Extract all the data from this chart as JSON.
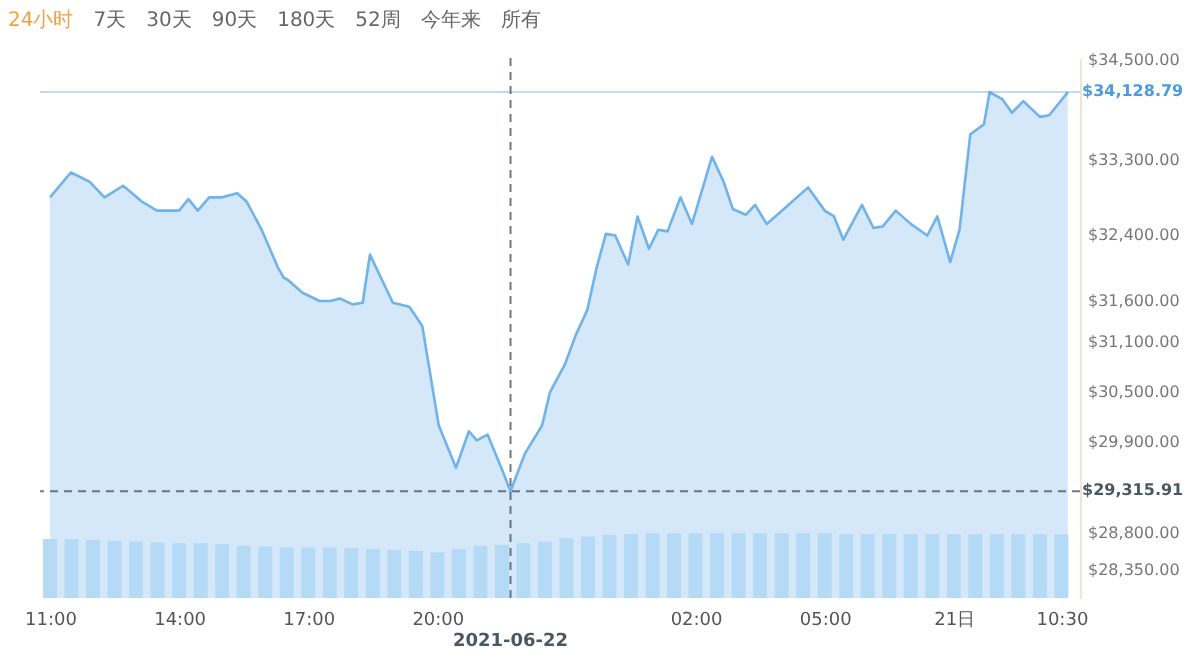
{
  "chart_data": {
    "type": "area",
    "annotations": [
      "24小时",
      "7天",
      "30天",
      "90天",
      "180天",
      "52周",
      "今年来",
      "所有"
    ],
    "x": [
      "2021-06-20T11:00",
      "2021-06-20T11:29",
      "2021-06-20T11:55",
      "2021-06-20T12:16",
      "2021-06-20T12:42",
      "2021-06-20T13:08",
      "2021-06-20T13:29",
      "2021-06-20T14:00",
      "2021-06-20T14:13",
      "2021-06-20T14:26",
      "2021-06-20T14:42",
      "2021-06-20T15:00",
      "2021-06-20T15:21",
      "2021-06-20T15:34",
      "2021-06-20T15:55",
      "2021-06-20T16:18",
      "2021-06-20T16:26",
      "2021-06-20T16:31",
      "2021-06-20T16:52",
      "2021-06-20T17:16",
      "2021-06-20T17:31",
      "2021-06-20T17:44",
      "2021-06-20T18:02",
      "2021-06-20T18:16",
      "2021-06-20T18:26",
      "2021-06-20T18:58",
      "2021-06-20T19:21",
      "2021-06-20T19:39",
      "2021-06-20T20:02",
      "2021-06-20T20:26",
      "2021-06-20T20:44",
      "2021-06-20T20:55",
      "2021-06-20T21:10",
      "2021-06-20T21:31",
      "2021-06-20T21:42",
      "2021-06-20T22:02",
      "2021-06-20T22:26",
      "2021-06-20T22:37",
      "2021-06-20T22:58",
      "2021-06-20T23:13",
      "2021-06-20T23:29",
      "2021-06-20T23:42",
      "2021-06-20T23:55",
      "2021-06-21T00:08",
      "2021-06-21T00:26",
      "2021-06-21T00:39",
      "2021-06-21T00:55",
      "2021-06-21T01:08",
      "2021-06-21T01:21",
      "2021-06-21T01:39",
      "2021-06-21T01:55",
      "2021-06-21T02:23",
      "2021-06-21T02:39",
      "2021-06-21T02:52",
      "2021-06-21T03:10",
      "2021-06-21T03:23",
      "2021-06-21T03:39",
      "2021-06-21T03:58",
      "2021-06-21T04:37",
      "2021-06-21T05:00",
      "2021-06-21T05:13",
      "2021-06-21T05:26",
      "2021-06-21T05:52",
      "2021-06-21T06:08",
      "2021-06-21T06:21",
      "2021-06-21T06:39",
      "2021-06-21T07:00",
      "2021-06-21T07:23",
      "2021-06-21T07:37",
      "2021-06-21T07:55",
      "2021-06-21T08:08",
      "2021-06-21T08:23",
      "2021-06-21T08:42",
      "2021-06-21T08:50",
      "2021-06-21T09:08",
      "2021-06-21T09:21",
      "2021-06-21T09:37",
      "2021-06-21T10:00",
      "2021-06-21T10:13",
      "2021-06-21T10:39"
    ],
    "series": [
      {
        "color": "#6fb3ea",
        "values": [
          32860,
          33160,
          33050,
          32860,
          33000,
          32810,
          32700,
          32700,
          32840,
          32700,
          32860,
          32860,
          32910,
          32810,
          32470,
          32010,
          31890,
          31870,
          31710,
          31610,
          31610,
          31640,
          31570,
          31590,
          32170,
          31590,
          31540,
          31310,
          30110,
          29600,
          30040,
          29930,
          30000,
          29560,
          29315.91,
          29770,
          30110,
          30510,
          30850,
          31200,
          31500,
          32010,
          32420,
          32400,
          32050,
          32630,
          32240,
          32470,
          32450,
          32860,
          32540,
          33350,
          33050,
          32720,
          32650,
          32770,
          32540,
          32680,
          32980,
          32700,
          32630,
          32350,
          32770,
          32490,
          32510,
          32700,
          32540,
          32400,
          32630,
          32080,
          32470,
          33620,
          33740,
          34130,
          34040,
          33880,
          34020,
          33830,
          33850,
          34128.79
        ]
      },
      {
        "type": "bar",
        "color": "#b5daf6",
        "x": [
          "2021-06-20T11:00",
          "2021-06-20T11:30",
          "2021-06-20T12:00",
          "2021-06-20T12:30",
          "2021-06-20T13:00",
          "2021-06-20T13:30",
          "2021-06-20T14:00",
          "2021-06-20T14:30",
          "2021-06-20T15:00",
          "2021-06-20T15:30",
          "2021-06-20T16:00",
          "2021-06-20T16:30",
          "2021-06-20T17:00",
          "2021-06-20T17:30",
          "2021-06-20T18:00",
          "2021-06-20T18:30",
          "2021-06-20T19:00",
          "2021-06-20T19:30",
          "2021-06-20T20:00",
          "2021-06-20T20:30",
          "2021-06-20T21:00",
          "2021-06-20T21:30",
          "2021-06-20T22:00",
          "2021-06-20T22:30",
          "2021-06-20T23:00",
          "2021-06-20T23:30",
          "2021-06-21T00:00",
          "2021-06-21T00:30",
          "2021-06-21T01:00",
          "2021-06-21T01:30",
          "2021-06-21T02:00",
          "2021-06-21T02:30",
          "2021-06-21T03:00",
          "2021-06-21T03:30",
          "2021-06-21T04:00",
          "2021-06-21T04:30",
          "2021-06-21T05:00",
          "2021-06-21T05:30",
          "2021-06-21T06:00",
          "2021-06-21T06:30",
          "2021-06-21T07:00",
          "2021-06-21T07:30",
          "2021-06-21T08:00",
          "2021-06-21T08:30",
          "2021-06-21T09:00",
          "2021-06-21T09:30",
          "2021-06-21T10:00",
          "2021-06-21T10:30"
        ],
        "values": [
          28740,
          28740,
          28730,
          28720,
          28710,
          28700,
          28690,
          28690,
          28680,
          28660,
          28650,
          28640,
          28640,
          28640,
          28630,
          28620,
          28610,
          28600,
          28580,
          28620,
          28660,
          28670,
          28690,
          28710,
          28750,
          28770,
          28790,
          28800,
          28810,
          28810,
          28810,
          28810,
          28810,
          28810,
          28810,
          28810,
          28810,
          28800,
          28800,
          28800,
          28800,
          28800,
          28800,
          28800,
          28800,
          28800,
          28800,
          28800
        ]
      }
    ],
    "xlim": [
      "2021-06-20T11:00",
      "2021-06-21T10:42"
    ],
    "xticks": [
      {
        "value": "2021-06-20T11:00",
        "label": "11:00"
      },
      {
        "value": "2021-06-20T14:00",
        "label": "14:00"
      },
      {
        "value": "2021-06-20T17:00",
        "label": "17:00"
      },
      {
        "value": "2021-06-20T20:00",
        "label": "20:00"
      },
      {
        "value": "2021-06-21T02:00",
        "label": "02:00"
      },
      {
        "value": "2021-06-21T05:00",
        "label": "05:00"
      },
      {
        "value": "2021-06-21T08:00",
        "label": "21日"
      },
      {
        "value": "2021-06-21T10:30",
        "label": "10:30"
      }
    ],
    "ylim": [
      28030,
      34540
    ],
    "yticks": [
      {
        "value": 34500,
        "label": "$34,500.00"
      },
      {
        "value": 33300,
        "label": "$33,300.00"
      },
      {
        "value": 32400,
        "label": "$32,400.00"
      },
      {
        "value": 31600,
        "label": "$31,600.00"
      },
      {
        "value": 31100,
        "label": "$31,100.00"
      },
      {
        "value": 30500,
        "label": "$30,500.00"
      },
      {
        "value": 29900,
        "label": "$29,900.00"
      },
      {
        "value": 28800,
        "label": "$28,800.00"
      },
      {
        "value": 28350,
        "label": "$28,350.00"
      }
    ],
    "ref_lines": [
      {
        "axis": "y",
        "value": 34128.79,
        "label": "$34,128.79",
        "color": "#4a9be0",
        "line_style": "solid"
      },
      {
        "axis": "y",
        "value": 29315.91,
        "label": "$29,315.91",
        "color": "#4a5866",
        "line_style": "dashed"
      },
      {
        "axis": "x",
        "value": "2021-06-20T21:42",
        "label": "2021-06-22",
        "color": "#4a5866",
        "line_style": "dashed"
      }
    ]
  }
}
